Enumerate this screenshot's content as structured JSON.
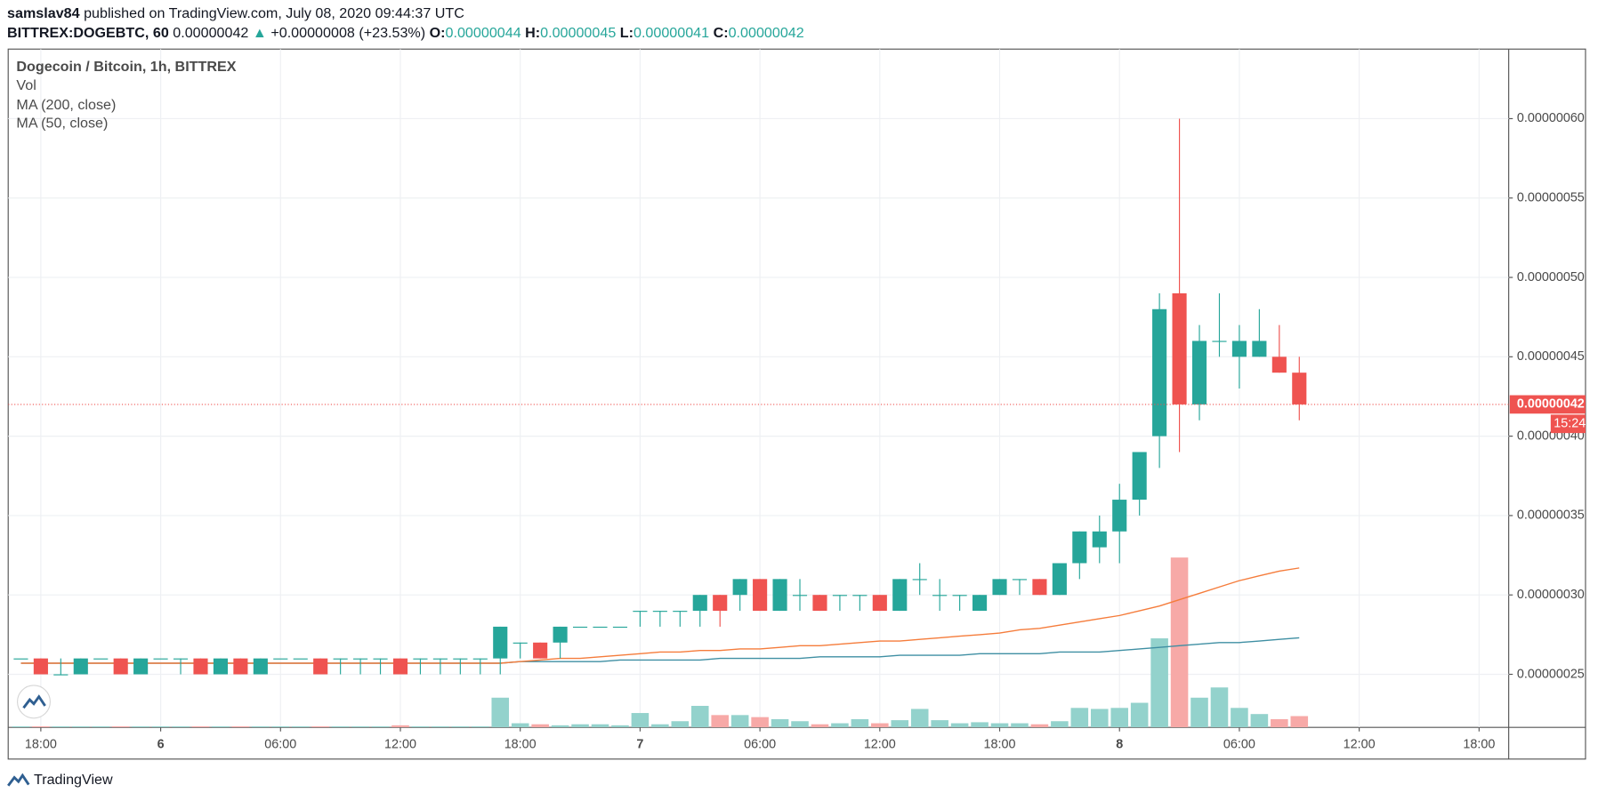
{
  "header": {
    "author": "samslav84",
    "published": "published on TradingView.com, July 08, 2020 09:44:37 UTC",
    "symbol": "BITTREX:DOGEBTC, 60",
    "last": "0.00000042",
    "arrow": "▲",
    "change": "+0.00000008 (+23.53%)",
    "ohlc": [
      {
        "key": "O:",
        "value": "0.00000044"
      },
      {
        "key": "H:",
        "value": "0.00000045"
      },
      {
        "key": "L:",
        "value": "0.00000041"
      },
      {
        "key": "C:",
        "value": "0.00000042"
      }
    ]
  },
  "footer": {
    "brand": "TradingView"
  },
  "chart_data": {
    "type": "candlestick",
    "title": "Dogecoin / Bitcoin, 1h, BITTREX",
    "x": [
      "2020-07-05T17:00",
      "2020-07-05T18:00",
      "2020-07-05T19:00",
      "2020-07-05T20:00",
      "2020-07-05T21:00",
      "2020-07-05T22:00",
      "2020-07-05T23:00",
      "2020-07-06T00:00",
      "2020-07-06T01:00",
      "2020-07-06T02:00",
      "2020-07-06T03:00",
      "2020-07-06T04:00",
      "2020-07-06T05:00",
      "2020-07-06T06:00",
      "2020-07-06T07:00",
      "2020-07-06T08:00",
      "2020-07-06T09:00",
      "2020-07-06T10:00",
      "2020-07-06T11:00",
      "2020-07-06T12:00",
      "2020-07-06T13:00",
      "2020-07-06T14:00",
      "2020-07-06T15:00",
      "2020-07-06T16:00",
      "2020-07-06T17:00",
      "2020-07-06T18:00",
      "2020-07-06T19:00",
      "2020-07-06T20:00",
      "2020-07-06T21:00",
      "2020-07-06T22:00",
      "2020-07-06T23:00",
      "2020-07-07T00:00",
      "2020-07-07T01:00",
      "2020-07-07T02:00",
      "2020-07-07T03:00",
      "2020-07-07T04:00",
      "2020-07-07T05:00",
      "2020-07-07T06:00",
      "2020-07-07T07:00",
      "2020-07-07T08:00",
      "2020-07-07T09:00",
      "2020-07-07T10:00",
      "2020-07-07T11:00",
      "2020-07-07T12:00",
      "2020-07-07T13:00",
      "2020-07-07T14:00",
      "2020-07-07T15:00",
      "2020-07-07T16:00",
      "2020-07-07T17:00",
      "2020-07-07T18:00",
      "2020-07-07T19:00",
      "2020-07-07T20:00",
      "2020-07-07T21:00",
      "2020-07-07T22:00",
      "2020-07-07T23:00",
      "2020-07-08T00:00",
      "2020-07-08T01:00",
      "2020-07-08T02:00",
      "2020-07-08T03:00",
      "2020-07-08T04:00",
      "2020-07-08T05:00",
      "2020-07-08T06:00",
      "2020-07-08T07:00",
      "2020-07-08T08:00",
      "2020-07-08T09:00"
    ],
    "open": [
      2.6e-07,
      2.6e-07,
      2.5e-07,
      2.5e-07,
      2.6e-07,
      2.6e-07,
      2.5e-07,
      2.6e-07,
      2.6e-07,
      2.6e-07,
      2.5e-07,
      2.6e-07,
      2.5e-07,
      2.6e-07,
      2.6e-07,
      2.6e-07,
      2.6e-07,
      2.6e-07,
      2.6e-07,
      2.6e-07,
      2.6e-07,
      2.6e-07,
      2.6e-07,
      2.6e-07,
      2.6e-07,
      2.7e-07,
      2.7e-07,
      2.7e-07,
      2.8e-07,
      2.8e-07,
      2.8e-07,
      2.9e-07,
      2.9e-07,
      2.9e-07,
      2.9e-07,
      3e-07,
      3e-07,
      3.1e-07,
      2.9e-07,
      3e-07,
      3e-07,
      3e-07,
      3e-07,
      3e-07,
      2.9e-07,
      3.1e-07,
      3e-07,
      3e-07,
      2.9e-07,
      3e-07,
      3.1e-07,
      3.1e-07,
      3e-07,
      3.2e-07,
      3.3e-07,
      3.4e-07,
      3.6e-07,
      4e-07,
      4.9e-07,
      4.2e-07,
      4.6e-07,
      4.5e-07,
      4.5e-07,
      4.5e-07,
      4.4e-07
    ],
    "high": [
      2.6e-07,
      2.6e-07,
      2.6e-07,
      2.6e-07,
      2.6e-07,
      2.6e-07,
      2.6e-07,
      2.6e-07,
      2.6e-07,
      2.6e-07,
      2.6e-07,
      2.6e-07,
      2.6e-07,
      2.6e-07,
      2.6e-07,
      2.6e-07,
      2.6e-07,
      2.6e-07,
      2.6e-07,
      2.6e-07,
      2.6e-07,
      2.6e-07,
      2.6e-07,
      2.6e-07,
      2.8e-07,
      2.7e-07,
      2.7e-07,
      2.8e-07,
      2.8e-07,
      2.8e-07,
      2.8e-07,
      2.9e-07,
      2.9e-07,
      2.9e-07,
      3e-07,
      3e-07,
      3.1e-07,
      3.1e-07,
      3.1e-07,
      3.1e-07,
      3e-07,
      3e-07,
      3e-07,
      3e-07,
      3.1e-07,
      3.2e-07,
      3.1e-07,
      3e-07,
      3e-07,
      3.1e-07,
      3.1e-07,
      3.1e-07,
      3.2e-07,
      3.4e-07,
      3.5e-07,
      3.7e-07,
      3.9e-07,
      4.9e-07,
      6e-07,
      4.7e-07,
      4.9e-07,
      4.7e-07,
      4.8e-07,
      4.7e-07,
      4.5e-07
    ],
    "low": [
      2.6e-07,
      2.5e-07,
      2.5e-07,
      2.5e-07,
      2.6e-07,
      2.5e-07,
      2.5e-07,
      2.6e-07,
      2.5e-07,
      2.5e-07,
      2.5e-07,
      2.5e-07,
      2.5e-07,
      2.6e-07,
      2.6e-07,
      2.5e-07,
      2.5e-07,
      2.5e-07,
      2.5e-07,
      2.5e-07,
      2.5e-07,
      2.5e-07,
      2.5e-07,
      2.5e-07,
      2.5e-07,
      2.6e-07,
      2.6e-07,
      2.6e-07,
      2.8e-07,
      2.8e-07,
      2.8e-07,
      2.8e-07,
      2.8e-07,
      2.8e-07,
      2.8e-07,
      2.8e-07,
      2.9e-07,
      2.9e-07,
      2.9e-07,
      2.9e-07,
      2.9e-07,
      2.9e-07,
      2.9e-07,
      2.9e-07,
      2.9e-07,
      3e-07,
      2.9e-07,
      2.9e-07,
      2.9e-07,
      3e-07,
      3e-07,
      3e-07,
      3e-07,
      3.1e-07,
      3.2e-07,
      3.2e-07,
      3.5e-07,
      3.8e-07,
      3.9e-07,
      4.1e-07,
      4.5e-07,
      4.3e-07,
      4.5e-07,
      4.4e-07,
      4.1e-07
    ],
    "close": [
      2.6e-07,
      2.5e-07,
      2.5e-07,
      2.6e-07,
      2.6e-07,
      2.5e-07,
      2.6e-07,
      2.6e-07,
      2.6e-07,
      2.5e-07,
      2.6e-07,
      2.5e-07,
      2.6e-07,
      2.6e-07,
      2.6e-07,
      2.5e-07,
      2.6e-07,
      2.6e-07,
      2.6e-07,
      2.5e-07,
      2.6e-07,
      2.6e-07,
      2.6e-07,
      2.6e-07,
      2.8e-07,
      2.7e-07,
      2.6e-07,
      2.8e-07,
      2.8e-07,
      2.8e-07,
      2.8e-07,
      2.9e-07,
      2.9e-07,
      2.9e-07,
      3e-07,
      2.9e-07,
      3.1e-07,
      2.9e-07,
      3.1e-07,
      3e-07,
      2.9e-07,
      3e-07,
      3e-07,
      2.9e-07,
      3.1e-07,
      3.1e-07,
      3e-07,
      3e-07,
      3e-07,
      3.1e-07,
      3.1e-07,
      3e-07,
      3.2e-07,
      3.4e-07,
      3.4e-07,
      3.6e-07,
      3.9e-07,
      4.8e-07,
      4.2e-07,
      4.6e-07,
      4.6e-07,
      4.6e-07,
      4.6e-07,
      4.4e-07,
      4.2e-07
    ],
    "up_color": "#26a69a",
    "down_color": "#ef5350",
    "volume_name": "Vol",
    "volume": [
      1,
      1,
      1,
      1,
      1,
      1,
      1,
      1,
      1,
      1,
      1,
      1,
      1,
      1,
      1,
      1,
      1,
      1,
      1,
      2,
      1,
      1,
      1,
      1,
      29,
      4,
      3,
      2,
      3,
      3,
      2,
      14,
      3,
      6,
      21,
      12,
      12,
      10,
      8,
      6,
      3,
      4,
      8,
      4,
      7,
      18,
      7,
      4,
      5,
      4,
      4,
      3,
      6,
      19,
      18,
      19,
      24,
      87,
      166,
      29,
      39,
      19,
      13,
      8,
      11
    ],
    "volume_up_color": "#93d2cc",
    "volume_down_color": "#f7a9a7",
    "series": [
      {
        "name": "MA (200, close)",
        "color": "#3f8fa3",
        "values": [
          2.57e-07,
          2.57e-07,
          2.57e-07,
          2.57e-07,
          2.57e-07,
          2.57e-07,
          2.57e-07,
          2.57e-07,
          2.57e-07,
          2.57e-07,
          2.57e-07,
          2.57e-07,
          2.57e-07,
          2.57e-07,
          2.57e-07,
          2.57e-07,
          2.57e-07,
          2.57e-07,
          2.57e-07,
          2.57e-07,
          2.57e-07,
          2.57e-07,
          2.57e-07,
          2.57e-07,
          2.57e-07,
          2.58e-07,
          2.58e-07,
          2.58e-07,
          2.58e-07,
          2.58e-07,
          2.59e-07,
          2.59e-07,
          2.59e-07,
          2.59e-07,
          2.59e-07,
          2.6e-07,
          2.6e-07,
          2.6e-07,
          2.6e-07,
          2.6e-07,
          2.61e-07,
          2.61e-07,
          2.61e-07,
          2.61e-07,
          2.62e-07,
          2.62e-07,
          2.62e-07,
          2.62e-07,
          2.63e-07,
          2.63e-07,
          2.63e-07,
          2.63e-07,
          2.64e-07,
          2.64e-07,
          2.64e-07,
          2.65e-07,
          2.66e-07,
          2.67e-07,
          2.68e-07,
          2.69e-07,
          2.7e-07,
          2.7e-07,
          2.71e-07,
          2.72e-07,
          2.73e-07
        ]
      },
      {
        "name": "MA (50, close)",
        "color": "#f57c3b",
        "values": [
          2.57e-07,
          2.57e-07,
          2.57e-07,
          2.57e-07,
          2.57e-07,
          2.57e-07,
          2.57e-07,
          2.57e-07,
          2.57e-07,
          2.57e-07,
          2.57e-07,
          2.57e-07,
          2.57e-07,
          2.57e-07,
          2.57e-07,
          2.57e-07,
          2.57e-07,
          2.57e-07,
          2.57e-07,
          2.57e-07,
          2.57e-07,
          2.57e-07,
          2.57e-07,
          2.57e-07,
          2.57e-07,
          2.58e-07,
          2.59e-07,
          2.6e-07,
          2.6e-07,
          2.61e-07,
          2.62e-07,
          2.63e-07,
          2.64e-07,
          2.64e-07,
          2.65e-07,
          2.65e-07,
          2.66e-07,
          2.66e-07,
          2.67e-07,
          2.68e-07,
          2.68e-07,
          2.69e-07,
          2.7e-07,
          2.71e-07,
          2.71e-07,
          2.72e-07,
          2.73e-07,
          2.74e-07,
          2.75e-07,
          2.76e-07,
          2.78e-07,
          2.79e-07,
          2.81e-07,
          2.83e-07,
          2.85e-07,
          2.87e-07,
          2.9e-07,
          2.93e-07,
          2.97e-07,
          3.01e-07,
          3.05e-07,
          3.09e-07,
          3.12e-07,
          3.15e-07,
          3.17e-07
        ]
      }
    ],
    "ylim": [
      2.166e-07,
      6.438e-07
    ],
    "yticks": [
      {
        "value": 2.5e-07,
        "label": "0.00000025"
      },
      {
        "value": 3e-07,
        "label": "0.00000030"
      },
      {
        "value": 3.5e-07,
        "label": "0.00000035"
      },
      {
        "value": 4e-07,
        "label": "0.00000040"
      },
      {
        "value": 4.5e-07,
        "label": "0.00000045"
      },
      {
        "value": 5e-07,
        "label": "0.00000050"
      },
      {
        "value": 5.5e-07,
        "label": "0.00000055"
      },
      {
        "value": 6e-07,
        "label": "0.00000060"
      }
    ],
    "xlim": [
      "2020-07-05T16:22",
      "2020-07-08T19:29"
    ],
    "xticks": [
      {
        "value": "2020-07-05T18:00",
        "label": "18:00"
      },
      {
        "value": "2020-07-06T00:00",
        "label": "6"
      },
      {
        "value": "2020-07-06T06:00",
        "label": "06:00"
      },
      {
        "value": "2020-07-06T12:00",
        "label": "12:00"
      },
      {
        "value": "2020-07-06T18:00",
        "label": "18:00"
      },
      {
        "value": "2020-07-07T00:00",
        "label": "7"
      },
      {
        "value": "2020-07-07T06:00",
        "label": "06:00"
      },
      {
        "value": "2020-07-07T12:00",
        "label": "12:00"
      },
      {
        "value": "2020-07-07T18:00",
        "label": "18:00"
      },
      {
        "value": "2020-07-08T00:00",
        "label": "8"
      },
      {
        "value": "2020-07-08T06:00",
        "label": "06:00"
      },
      {
        "value": "2020-07-08T12:00",
        "label": "12:00"
      },
      {
        "value": "2020-07-08T18:00",
        "label": "18:00"
      }
    ],
    "grid": true,
    "last_price": {
      "value": 4.2e-07,
      "label": "0.00000042"
    },
    "countdown": "15:24"
  }
}
